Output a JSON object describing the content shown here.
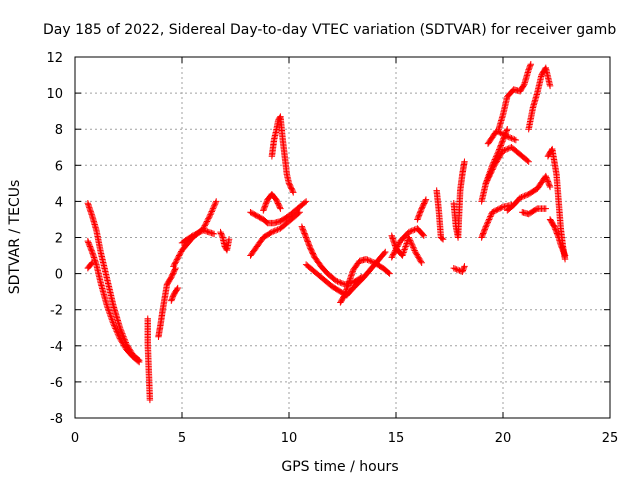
{
  "chart_data": {
    "type": "scatter",
    "title": "Day 185 of 2022, Sidereal Day-to-day VTEC variation (SDTVAR) for receiver gamb",
    "xlabel": "GPS time / hours",
    "ylabel": "SDTVAR / TECUs",
    "xlim": [
      0,
      25
    ],
    "ylim": [
      -8,
      12
    ],
    "grid": true,
    "x_ticks": [
      0,
      5,
      10,
      15,
      20,
      25
    ],
    "y_ticks": [
      -8,
      -6,
      -4,
      -2,
      0,
      2,
      4,
      6,
      8,
      10,
      12
    ],
    "marker": "+",
    "series": [
      {
        "name": "SDTVAR",
        "color": "#ff0000",
        "segments": [
          {
            "x": [
              0.6,
              0.8,
              1.0,
              1.2,
              1.5,
              1.8,
              2.1,
              2.4,
              2.7,
              3.0
            ],
            "y": [
              3.9,
              3.2,
              2.4,
              1.2,
              -0.3,
              -1.8,
              -3.0,
              -3.9,
              -4.5,
              -4.8
            ]
          },
          {
            "x": [
              0.6,
              0.8,
              1.0,
              1.2,
              1.5,
              1.8,
              2.1,
              2.4,
              2.7,
              3.0
            ],
            "y": [
              1.8,
              1.2,
              0.5,
              -0.5,
              -1.8,
              -2.8,
              -3.6,
              -4.2,
              -4.6,
              -4.9
            ]
          },
          {
            "x": [
              0.6,
              0.8
            ],
            "y": [
              0.3,
              0.6
            ]
          },
          {
            "x": [
              3.4,
              3.4,
              3.5
            ],
            "y": [
              -2.5,
              -3.9,
              -7.0
            ]
          },
          {
            "x": [
              3.9,
              4.0,
              4.1,
              4.3,
              4.5,
              4.7
            ],
            "y": [
              -3.5,
              -2.8,
              -2.0,
              -0.6,
              -0.2,
              0.3
            ]
          },
          {
            "x": [
              4.5,
              4.6,
              4.8
            ],
            "y": [
              -1.5,
              -1.2,
              -0.8
            ]
          },
          {
            "x": [
              4.6,
              5.0,
              5.5,
              6.0,
              6.3,
              6.6
            ],
            "y": [
              0.4,
              1.3,
              2.0,
              2.5,
              3.2,
              4.0
            ]
          },
          {
            "x": [
              5.0,
              5.5,
              6.0,
              6.5
            ],
            "y": [
              1.7,
              2.1,
              2.4,
              2.2
            ]
          },
          {
            "x": [
              6.8,
              6.9,
              7.0,
              7.1,
              7.2
            ],
            "y": [
              2.3,
              2.0,
              1.5,
              1.3,
              1.9
            ]
          },
          {
            "x": [
              8.2,
              8.5,
              8.8,
              9.0,
              9.3,
              9.6,
              10.0,
              10.4,
              10.8
            ],
            "y": [
              3.4,
              3.2,
              3.0,
              2.8,
              2.8,
              2.9,
              3.2,
              3.6,
              4.0
            ]
          },
          {
            "x": [
              8.2,
              8.5,
              8.8,
              9.2,
              9.6,
              10.0,
              10.5
            ],
            "y": [
              1.0,
              1.5,
              2.0,
              2.3,
              2.5,
              2.9,
              3.4
            ]
          },
          {
            "x": [
              8.8,
              9.0,
              9.2,
              9.4,
              9.6
            ],
            "y": [
              3.5,
              4.1,
              4.4,
              4.1,
              3.6
            ]
          },
          {
            "x": [
              9.2,
              9.3,
              9.4,
              9.5,
              9.6,
              9.7,
              9.8,
              9.9,
              10.0,
              10.2
            ],
            "y": [
              6.5,
              7.4,
              7.9,
              8.5,
              8.7,
              7.5,
              6.5,
              5.5,
              5.0,
              4.5
            ]
          },
          {
            "x": [
              10.6,
              10.8,
              11.0,
              11.2,
              11.5,
              11.8,
              12.2,
              12.6,
              13.0,
              13.4
            ],
            "y": [
              2.6,
              2.0,
              1.4,
              0.9,
              0.4,
              0.0,
              -0.4,
              -0.6,
              -0.5,
              -0.2
            ]
          },
          {
            "x": [
              10.8,
              11.2,
              11.6,
              12.0,
              12.4,
              12.7,
              13.0,
              13.5,
              14.0,
              14.5
            ],
            "y": [
              0.5,
              0.1,
              -0.3,
              -0.7,
              -1.0,
              -1.2,
              -0.8,
              -0.2,
              0.5,
              1.2
            ]
          },
          {
            "x": [
              12.4,
              12.6,
              12.8,
              13.0,
              13.3,
              13.6,
              14.0,
              14.4,
              14.7
            ],
            "y": [
              -1.6,
              -1.2,
              -0.5,
              0.2,
              0.7,
              0.8,
              0.6,
              0.3,
              0.0
            ]
          },
          {
            "x": [
              14.8,
              15.0,
              15.3,
              15.6,
              15.9,
              16.2
            ],
            "y": [
              2.1,
              1.4,
              1.0,
              2.0,
              1.2,
              0.6
            ]
          },
          {
            "x": [
              14.8,
              15.2,
              15.6,
              16.0,
              16.3
            ],
            "y": [
              0.9,
              1.8,
              2.3,
              2.5,
              2.1
            ]
          },
          {
            "x": [
              16.0,
              16.2,
              16.4
            ],
            "y": [
              3.0,
              3.6,
              4.1
            ]
          },
          {
            "x": [
              16.9,
              17.0,
              17.1,
              17.2
            ],
            "y": [
              4.6,
              3.5,
              2.0,
              1.9
            ]
          },
          {
            "x": [
              17.7,
              17.8,
              17.9,
              18.0,
              18.1,
              18.2
            ],
            "y": [
              3.9,
              2.6,
              2.0,
              4.6,
              5.5,
              6.2
            ]
          },
          {
            "x": [
              17.7,
              17.9,
              18.1,
              18.2
            ],
            "y": [
              0.3,
              0.2,
              0.1,
              0.4
            ]
          },
          {
            "x": [
              19.0,
              19.2,
              19.5,
              19.8,
              20.0,
              20.2
            ],
            "y": [
              4.0,
              5.0,
              6.0,
              6.8,
              7.4,
              8.0
            ]
          },
          {
            "x": [
              19.0,
              19.2,
              19.5,
              20.0,
              20.4
            ],
            "y": [
              2.0,
              2.6,
              3.4,
              3.7,
              3.8
            ]
          },
          {
            "x": [
              19.2,
              19.6,
              20.0,
              20.4,
              20.8,
              21.2
            ],
            "y": [
              5.0,
              6.0,
              6.8,
              7.0,
              6.6,
              6.2
            ]
          },
          {
            "x": [
              19.3,
              19.7,
              20.2,
              20.6
            ],
            "y": [
              7.2,
              7.9,
              7.6,
              7.4
            ]
          },
          {
            "x": [
              19.8,
              20.0,
              20.2,
              20.5,
              20.8,
              21.0,
              21.2,
              21.3
            ],
            "y": [
              8.0,
              8.8,
              9.8,
              10.2,
              10.1,
              10.5,
              11.3,
              11.6
            ]
          },
          {
            "x": [
              20.2,
              20.5,
              20.8,
              21.2,
              21.6,
              22.0,
              22.2
            ],
            "y": [
              3.5,
              3.8,
              4.2,
              4.4,
              4.7,
              5.4,
              4.8
            ]
          },
          {
            "x": [
              21.2,
              21.4,
              21.6,
              21.8,
              22.0,
              22.2
            ],
            "y": [
              8.0,
              9.2,
              10.0,
              11.0,
              11.4,
              10.4
            ]
          },
          {
            "x": [
              20.9,
              21.2,
              21.6,
              22.0
            ],
            "y": [
              3.4,
              3.3,
              3.6,
              3.6
            ]
          },
          {
            "x": [
              22.1,
              22.3,
              22.5,
              22.6,
              22.7,
              22.8,
              22.9
            ],
            "y": [
              6.5,
              6.9,
              5.5,
              4.0,
              2.5,
              1.5,
              0.8
            ]
          },
          {
            "x": [
              22.2,
              22.4,
              22.6,
              22.7,
              22.9
            ],
            "y": [
              3.0,
              2.6,
              2.0,
              1.6,
              1.0
            ]
          }
        ]
      }
    ]
  }
}
